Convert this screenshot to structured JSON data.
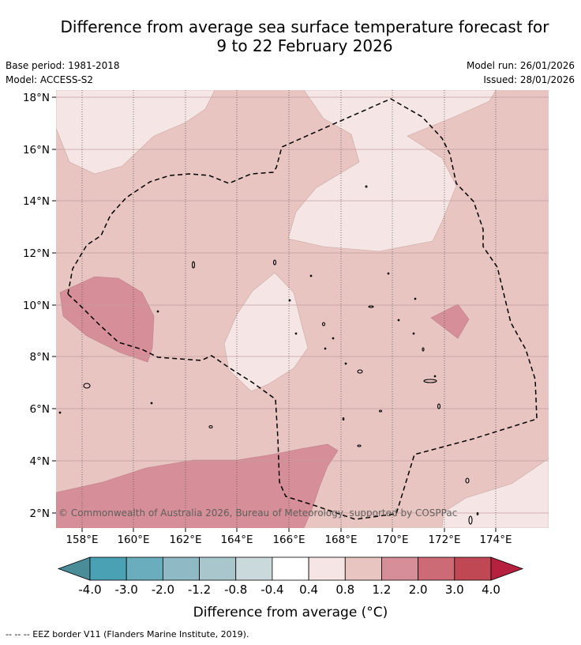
{
  "title": {
    "line1": "Difference from average sea surface temperature forecast for",
    "line2": "9 to 22 February 2026"
  },
  "meta": {
    "base_period": "Base period: 1981-2018",
    "model": "Model: ACCESS-S2",
    "model_run": "Model run: 26/01/2026",
    "issued": "Issued: 28/01/2026"
  },
  "map": {
    "lat_labels": [
      "18°N",
      "16°N",
      "14°N",
      "12°N",
      "10°N",
      "8°N",
      "6°N",
      "4°N",
      "2°N"
    ],
    "lon_labels": [
      "158°E",
      "160°E",
      "162°E",
      "164°E",
      "166°E",
      "168°E",
      "170°E",
      "172°E",
      "174°E"
    ],
    "copyright": "© Commonwealth of Australia 2026, Bureau of Meteorology, supported by COSPPac"
  },
  "colorbar": {
    "labels": [
      "-4.0",
      "-3.0",
      "-2.0",
      "-1.2",
      "-0.8",
      "-0.4",
      "0.4",
      "0.8",
      "1.2",
      "2.0",
      "3.0",
      "4.0"
    ],
    "title": "Difference from average (°C)",
    "colors": [
      "#4a8c98",
      "#4aa1b4",
      "#6aaebe",
      "#8eb9c5",
      "#a8c6cc",
      "#cad9db",
      "#ffffff",
      "#f5e6e5",
      "#e8c5c1",
      "#d68f98",
      "#cc6a75",
      "#c04855",
      "#b5213e"
    ]
  },
  "fill_colors": {
    "base": "#e8c5c1",
    "light": "#f5e6e5",
    "warm": "#d68f98",
    "warmer": "#cc6a75"
  },
  "footer": "--  --  -- EEZ border V11 (Flanders Marine Institute, 2019)."
}
